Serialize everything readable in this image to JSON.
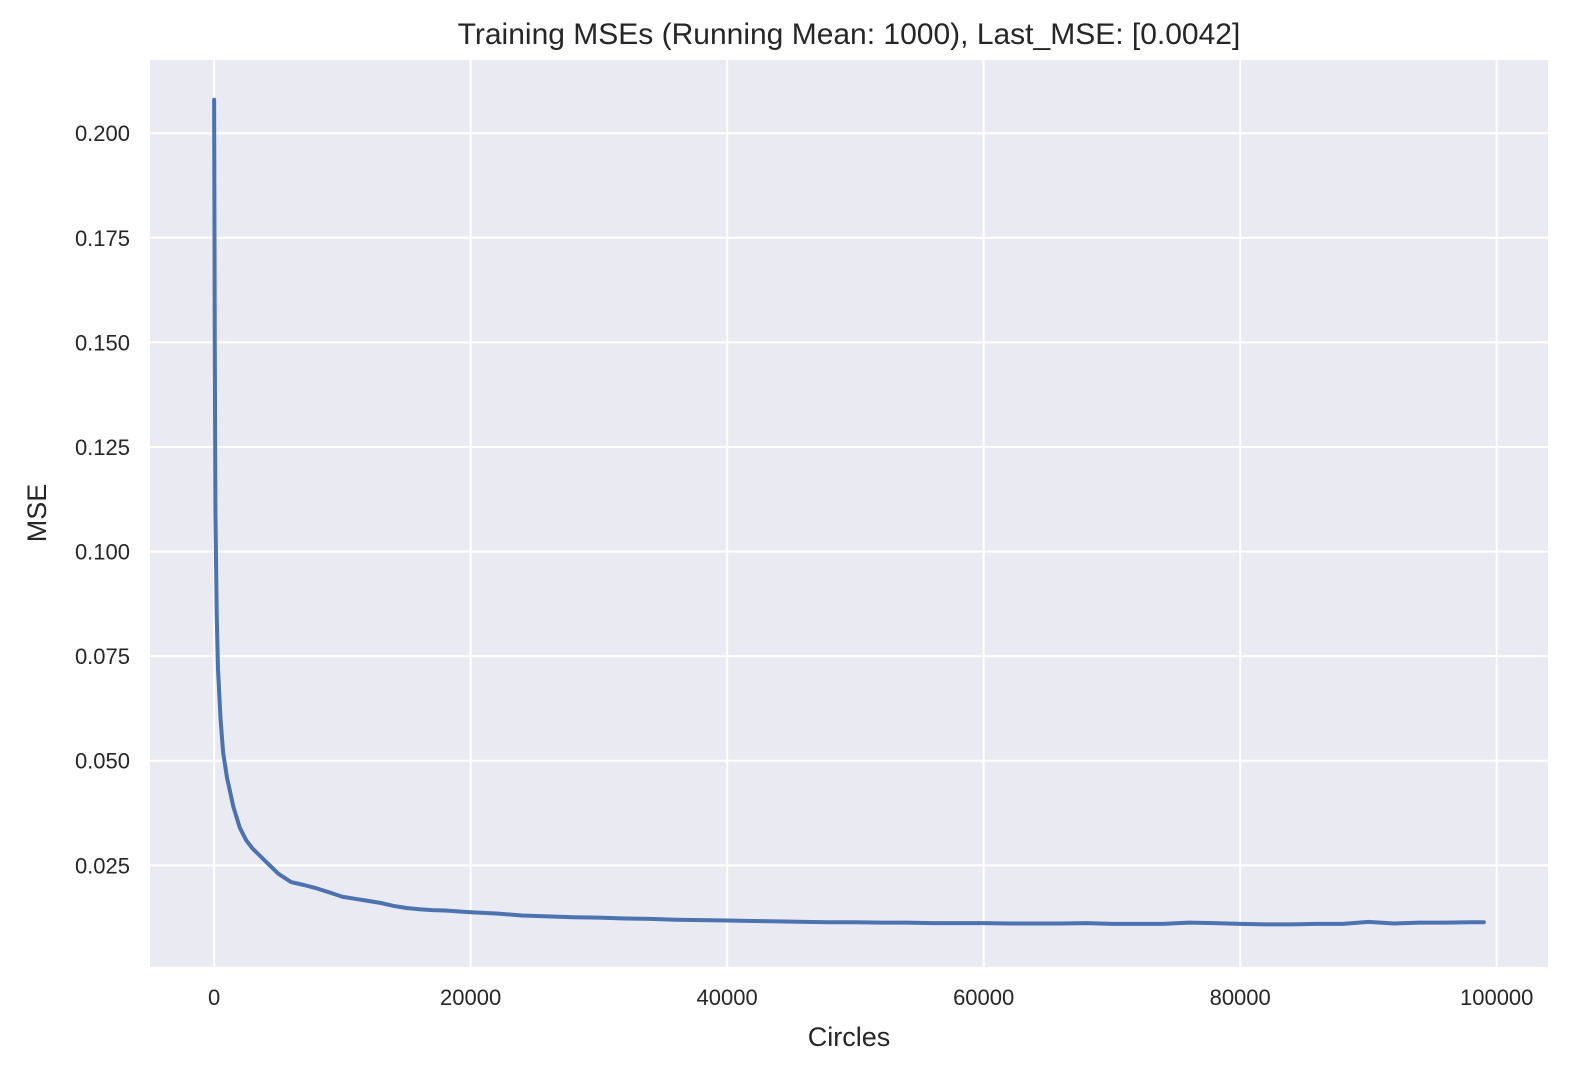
{
  "chart_data": {
    "type": "line",
    "title": "Training MSEs (Running Mean: 1000), Last_MSE: [0.0042]",
    "xlabel": "Circles",
    "ylabel": "MSE",
    "xlim": [
      -5000,
      104000
    ],
    "ylim": [
      0.0007,
      0.2175
    ],
    "xticks": [
      0,
      20000,
      40000,
      60000,
      80000,
      100000
    ],
    "xtick_labels": [
      "0",
      "20000",
      "40000",
      "60000",
      "80000",
      "100000"
    ],
    "yticks": [
      0.025,
      0.05,
      0.075,
      0.1,
      0.125,
      0.15,
      0.175,
      0.2
    ],
    "ytick_labels": [
      "0.025",
      "0.050",
      "0.075",
      "0.100",
      "0.125",
      "0.150",
      "0.175",
      "0.200"
    ],
    "grid": true,
    "legend": "none",
    "series": [
      {
        "color": "#4c72b0",
        "x": [
          0,
          50,
          100,
          200,
          300,
          500,
          700,
          1000,
          1500,
          2000,
          2500,
          3000,
          3500,
          4000,
          5000,
          6000,
          7000,
          8000,
          9000,
          10000,
          11000,
          12000,
          13000,
          14000,
          15000,
          16000,
          17000,
          18000,
          19000,
          20000,
          22000,
          24000,
          26000,
          28000,
          30000,
          32000,
          34000,
          36000,
          38000,
          40000,
          42000,
          44000,
          46000,
          48000,
          50000,
          52000,
          54000,
          56000,
          58000,
          60000,
          62000,
          64000,
          66000,
          68000,
          70000,
          72000,
          74000,
          76000,
          78000,
          80000,
          82000,
          84000,
          86000,
          88000,
          90000,
          92000,
          94000,
          96000,
          98000,
          99000
        ],
        "y": [
          0.208,
          0.15,
          0.11,
          0.085,
          0.072,
          0.06,
          0.052,
          0.046,
          0.039,
          0.034,
          0.031,
          0.029,
          0.0275,
          0.026,
          0.023,
          0.021,
          0.0203,
          0.0195,
          0.0185,
          0.0175,
          0.017,
          0.0165,
          0.016,
          0.0153,
          0.0148,
          0.0145,
          0.0143,
          0.0142,
          0.014,
          0.0138,
          0.0135,
          0.013,
          0.0128,
          0.0126,
          0.0125,
          0.0123,
          0.0122,
          0.012,
          0.0119,
          0.0118,
          0.0117,
          0.0116,
          0.0115,
          0.0114,
          0.0114,
          0.0113,
          0.0113,
          0.0112,
          0.0112,
          0.0112,
          0.0111,
          0.0111,
          0.0111,
          0.0112,
          0.011,
          0.011,
          0.011,
          0.0113,
          0.0112,
          0.011,
          0.0109,
          0.0109,
          0.011,
          0.011,
          0.0115,
          0.0111,
          0.0113,
          0.0113,
          0.0114,
          0.0114
        ]
      }
    ]
  },
  "colors": {
    "plot_background": "#eaeaf2",
    "grid": "#ffffff",
    "line": "#4c72b0",
    "text": "#262626"
  }
}
